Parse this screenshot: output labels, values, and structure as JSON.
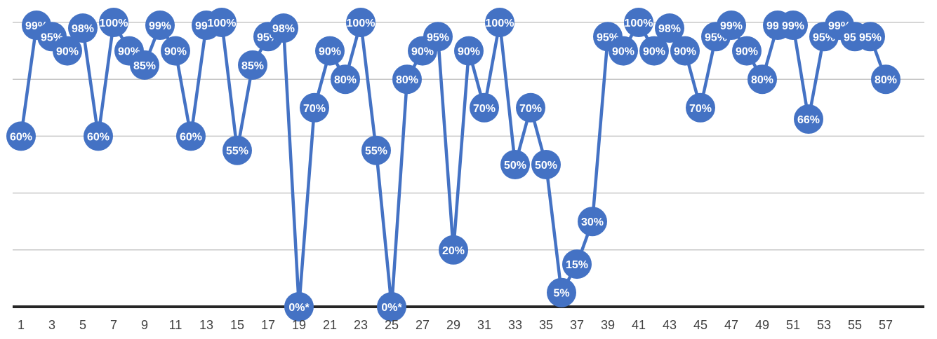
{
  "chart_data": {
    "type": "line",
    "title": "",
    "xlabel": "",
    "ylabel": "",
    "ylim": [
      0,
      1
    ],
    "gridlines": true,
    "y_axis_labels_visible": false,
    "colors": {
      "series": "#4472C4",
      "label_text": "#FFFFFF",
      "grid": "#C8C8C8",
      "baseline": "#262626"
    },
    "x": [
      1,
      2,
      3,
      4,
      5,
      6,
      7,
      8,
      9,
      10,
      11,
      12,
      13,
      14,
      15,
      16,
      17,
      18,
      19,
      20,
      21,
      22,
      23,
      24,
      25,
      26,
      27,
      28,
      29,
      30,
      31,
      32,
      33,
      34,
      35,
      36,
      37,
      38,
      39,
      40,
      41,
      42,
      43,
      44,
      45,
      46,
      47,
      48,
      49,
      50,
      51,
      52,
      53,
      54,
      55,
      56,
      57
    ],
    "x_tick_labels": [
      "1",
      "3",
      "5",
      "7",
      "9",
      "11",
      "13",
      "15",
      "17",
      "19",
      "21",
      "23",
      "25",
      "27",
      "29",
      "31",
      "33",
      "35",
      "37",
      "39",
      "41",
      "43",
      "45",
      "47",
      "49",
      "51",
      "53",
      "55",
      "57"
    ],
    "series": [
      {
        "values": [
          0.6,
          0.99,
          0.95,
          0.9,
          0.98,
          0.6,
          1.0,
          0.9,
          0.85,
          0.99,
          0.9,
          0.6,
          0.99,
          1.0,
          0.55,
          0.85,
          0.95,
          0.98,
          0.0,
          0.7,
          0.9,
          0.8,
          1.0,
          0.55,
          0.0,
          0.8,
          0.9,
          0.95,
          0.2,
          0.9,
          0.7,
          1.0,
          0.5,
          0.7,
          0.5,
          0.05,
          0.15,
          0.3,
          0.95,
          0.9,
          1.0,
          0.9,
          0.98,
          0.9,
          0.7,
          0.95,
          0.99,
          0.9,
          0.8,
          0.99,
          0.99,
          0.66,
          0.95,
          0.99,
          0.95,
          0.95,
          0.8
        ],
        "labels": [
          "60%",
          "99%",
          "95%",
          "90%",
          "98%",
          "60%",
          "100%",
          "90%",
          "85%",
          "99%",
          "90%",
          "60%",
          "99%",
          "100%",
          "55%",
          "85%",
          "95%",
          "98%",
          "0%*",
          "70%",
          "90%",
          "80%",
          "100%",
          "55%",
          "0%*",
          "80%",
          "90%",
          "95%",
          "20%",
          "90%",
          "70%",
          "100%",
          "50%",
          "70%",
          "50%",
          "5%",
          "15%",
          "30%",
          "95%",
          "90%",
          "100%",
          "90%",
          "98%",
          "90%",
          "70%",
          "95%",
          "99%",
          "90%",
          "80%",
          "99%",
          "99%",
          "66%",
          "95%",
          "99%",
          "95%",
          "95%",
          "80%"
        ]
      }
    ]
  }
}
